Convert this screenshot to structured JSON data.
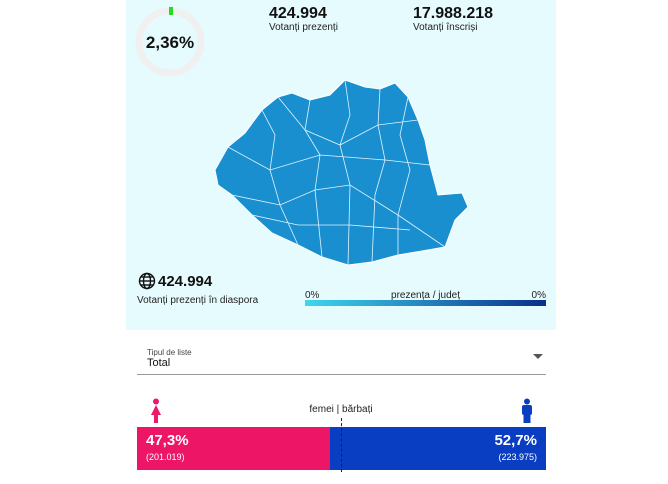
{
  "turnout": {
    "percent": "2,36%",
    "present": {
      "value": "424.994",
      "label": "Votanți prezenți"
    },
    "registered": {
      "value": "17.988.218",
      "label": "Votanți înscriși"
    }
  },
  "diaspora": {
    "value": "424.994",
    "label": "Votanți prezenți în diaspora"
  },
  "legend": {
    "min": "0%",
    "title": "prezența / județ",
    "max": "0%"
  },
  "filter": {
    "label": "Tipul de liste",
    "selected": "Total"
  },
  "gender": {
    "title": "femei | bărbați",
    "women": {
      "percent": "47,3%",
      "count": "(201.019)"
    },
    "men": {
      "percent": "52,7%",
      "count": "(223.975)"
    }
  }
}
